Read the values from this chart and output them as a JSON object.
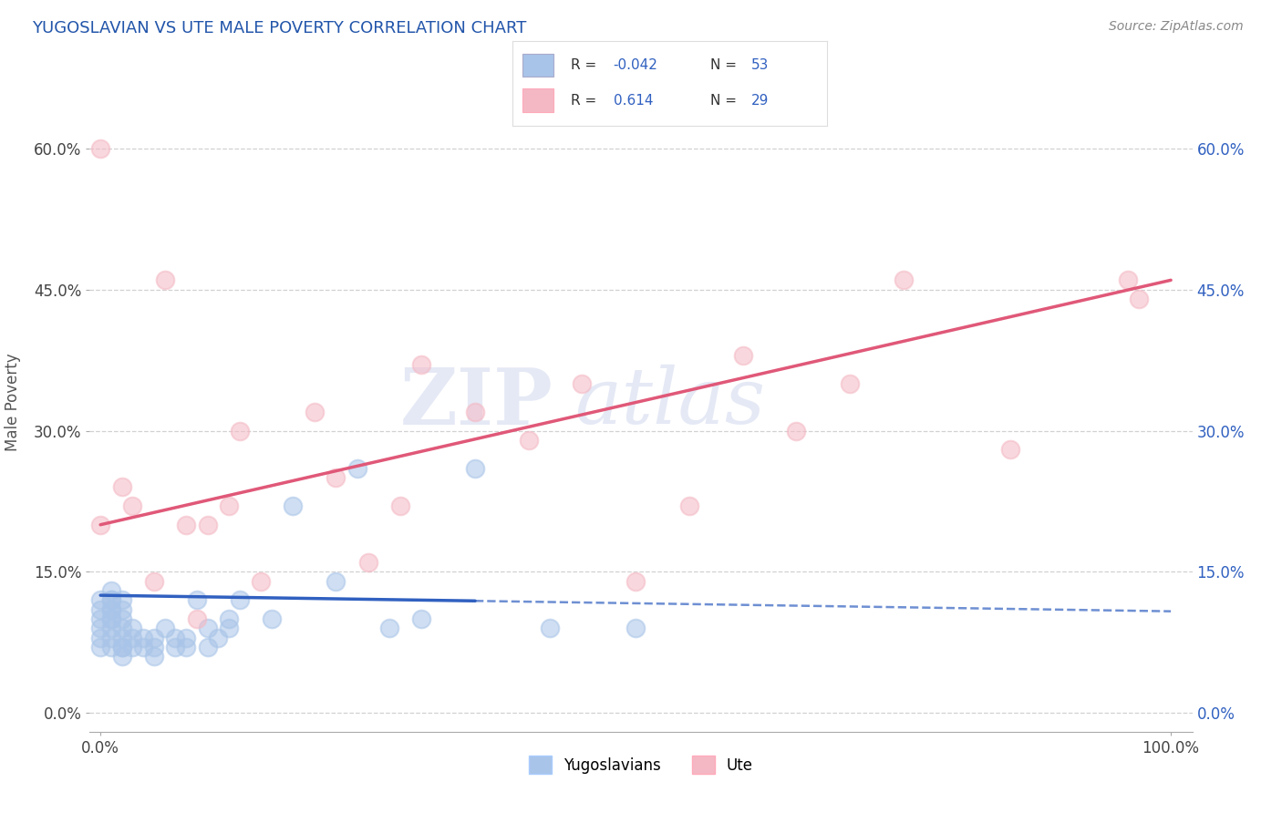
{
  "title": "YUGOSLAVIAN VS UTE MALE POVERTY CORRELATION CHART",
  "source": "Source: ZipAtlas.com",
  "ylabel": "Male Poverty",
  "xlim": [
    -0.01,
    1.02
  ],
  "ylim": [
    -0.02,
    0.68
  ],
  "ytick_labels": [
    "0.0%",
    "15.0%",
    "30.0%",
    "45.0%",
    "60.0%"
  ],
  "ytick_values": [
    0.0,
    0.15,
    0.3,
    0.45,
    0.6
  ],
  "xtick_labels": [
    "0.0%",
    "100.0%"
  ],
  "xtick_values": [
    0.0,
    1.0
  ],
  "legend_label1": "Yugoslavians",
  "legend_label2": "Ute",
  "R1": -0.042,
  "N1": 53,
  "R2": 0.614,
  "N2": 29,
  "blue_color": "#a8c4e8",
  "pink_color": "#f4b8c4",
  "blue_line_color": "#3060c0",
  "pink_line_color": "#e05878",
  "watermark_zip": "ZIP",
  "watermark_atlas": "atlas",
  "background_color": "#ffffff",
  "grid_color": "#cccccc",
  "yug_x": [
    0.0,
    0.0,
    0.0,
    0.0,
    0.0,
    0.0,
    0.01,
    0.01,
    0.01,
    0.01,
    0.01,
    0.01,
    0.01,
    0.01,
    0.01,
    0.01,
    0.02,
    0.02,
    0.02,
    0.02,
    0.02,
    0.02,
    0.02,
    0.02,
    0.03,
    0.03,
    0.03,
    0.04,
    0.04,
    0.05,
    0.05,
    0.05,
    0.06,
    0.07,
    0.07,
    0.08,
    0.08,
    0.09,
    0.1,
    0.1,
    0.11,
    0.12,
    0.12,
    0.13,
    0.16,
    0.18,
    0.22,
    0.24,
    0.27,
    0.3,
    0.35,
    0.42,
    0.5
  ],
  "yug_y": [
    0.07,
    0.08,
    0.09,
    0.1,
    0.11,
    0.12,
    0.07,
    0.08,
    0.09,
    0.1,
    0.1,
    0.11,
    0.11,
    0.12,
    0.12,
    0.13,
    0.06,
    0.07,
    0.07,
    0.08,
    0.09,
    0.1,
    0.11,
    0.12,
    0.07,
    0.08,
    0.09,
    0.07,
    0.08,
    0.06,
    0.07,
    0.08,
    0.09,
    0.07,
    0.08,
    0.07,
    0.08,
    0.12,
    0.07,
    0.09,
    0.08,
    0.09,
    0.1,
    0.12,
    0.1,
    0.22,
    0.14,
    0.26,
    0.09,
    0.1,
    0.26,
    0.09,
    0.09
  ],
  "ute_x": [
    0.0,
    0.0,
    0.02,
    0.03,
    0.05,
    0.06,
    0.08,
    0.09,
    0.1,
    0.12,
    0.13,
    0.15,
    0.2,
    0.22,
    0.25,
    0.28,
    0.3,
    0.35,
    0.4,
    0.45,
    0.5,
    0.55,
    0.6,
    0.65,
    0.7,
    0.75,
    0.85,
    0.96,
    0.97
  ],
  "ute_y": [
    0.6,
    0.2,
    0.24,
    0.22,
    0.14,
    0.46,
    0.2,
    0.1,
    0.2,
    0.22,
    0.3,
    0.14,
    0.32,
    0.25,
    0.16,
    0.22,
    0.37,
    0.32,
    0.29,
    0.35,
    0.14,
    0.22,
    0.38,
    0.3,
    0.35,
    0.46,
    0.28,
    0.46,
    0.44
  ],
  "yug_line_x0": 0.0,
  "yug_line_x1": 0.35,
  "yug_line_x2": 1.0,
  "yug_line_y_at_0": 0.125,
  "yug_line_y_at_1": 0.108,
  "ute_line_x0": 0.0,
  "ute_line_x1": 1.0,
  "ute_line_y_at_0": 0.2,
  "ute_line_y_at_1": 0.46
}
